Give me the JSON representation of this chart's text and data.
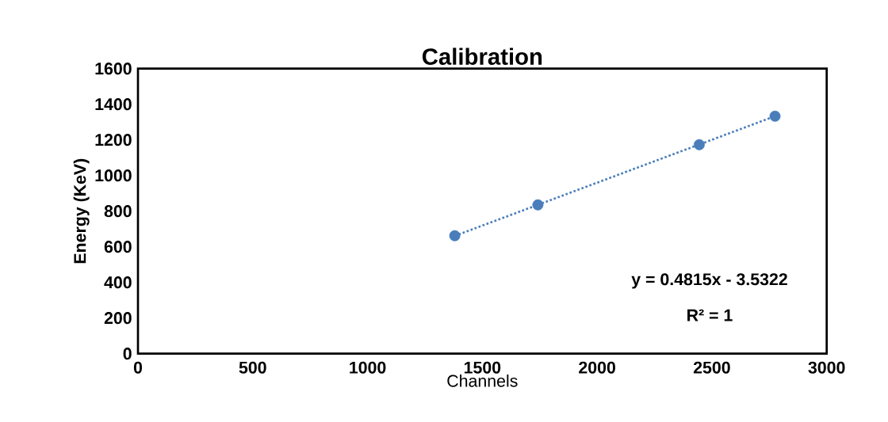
{
  "chart_data": {
    "type": "scatter",
    "title": "Calibration",
    "xlabel": "Channels",
    "ylabel": "Energy (KeV)",
    "xlim": [
      0,
      3000
    ],
    "xticks": [
      0,
      500,
      1000,
      1500,
      2000,
      2500,
      3000
    ],
    "ylim": [
      0,
      1600
    ],
    "yticks": [
      0,
      200,
      400,
      600,
      800,
      1000,
      1200,
      1400,
      1600
    ],
    "grid": false,
    "marker": "circle",
    "series": [
      {
        "color": "#4a7ebb",
        "x": [
          1380,
          1742,
          2445,
          2775
        ],
        "values": [
          662,
          835,
          1173,
          1333
        ]
      },
      {
        "type": "line",
        "color": "#4a7ebb",
        "line_style": "dotted",
        "marker": "none",
        "x": [
          1380,
          2775
        ],
        "values": [
          661,
          1333
        ]
      }
    ],
    "annotations": [
      "y = 0.4815x - 3.5322",
      "R² = 1"
    ]
  }
}
